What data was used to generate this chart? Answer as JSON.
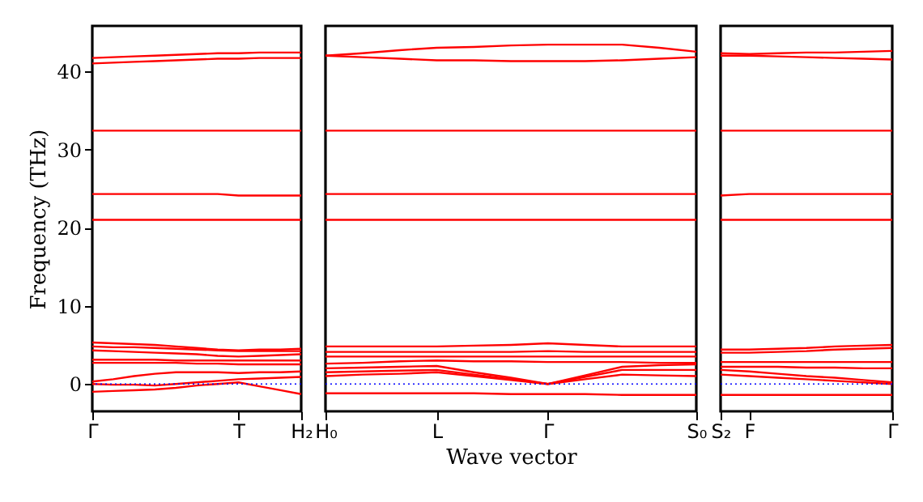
{
  "chart_data": [
    {
      "type": "line",
      "ylabel": "Frequency (THz)",
      "categories": [
        "Γ",
        null,
        null,
        null,
        null,
        null,
        null,
        "T",
        null,
        null,
        "H₂"
      ],
      "ylim": [
        -3.5,
        45.8
      ],
      "yticks": [
        0,
        10,
        20,
        30,
        40
      ],
      "ref_lines": [
        {
          "axis": "y",
          "value": 0,
          "color": "#0000ff",
          "line_style": "dotted"
        }
      ],
      "series": [
        {
          "color": "#ff0000",
          "values": [
            -1.0,
            -0.9,
            -0.8,
            -0.7,
            -0.5,
            -0.2,
            0.0,
            0.2,
            -0.3,
            -0.8,
            -1.3
          ]
        },
        {
          "color": "#ff0000",
          "values": [
            0,
            -0.1,
            -0.1,
            -0.2,
            0,
            0.2,
            0.4,
            0.6,
            0.7,
            0.8,
            0.9
          ]
        },
        {
          "color": "#ff0000",
          "values": [
            0.3,
            0.6,
            1.0,
            1.3,
            1.5,
            1.5,
            1.5,
            1.4,
            1.5,
            1.5,
            1.6
          ]
        },
        {
          "color": "#ff0000",
          "values": [
            2.7,
            2.7,
            2.7,
            2.7,
            2.7,
            2.6,
            2.6,
            2.5,
            2.5,
            2.5,
            2.5
          ]
        },
        {
          "color": "#ff0000",
          "values": [
            3.1,
            3.1,
            3.1,
            3.1,
            3.0,
            3.0,
            3.0,
            3.0,
            3.0,
            3.0,
            3.0
          ]
        },
        {
          "color": "#ff0000",
          "values": [
            4.3,
            4.2,
            4.1,
            4.0,
            3.9,
            3.8,
            3.6,
            3.5,
            3.6,
            3.7,
            3.8
          ]
        },
        {
          "color": "#ff0000",
          "values": [
            4.8,
            4.7,
            4.7,
            4.6,
            4.5,
            4.4,
            4.3,
            4.2,
            4.2,
            4.2,
            4.2
          ]
        },
        {
          "color": "#ff0000",
          "values": [
            5.3,
            5.2,
            5.1,
            5.0,
            4.8,
            4.6,
            4.4,
            4.3,
            4.4,
            4.4,
            4.5
          ]
        },
        {
          "color": "#ff0000",
          "values": [
            21.0,
            21.0,
            21.0,
            21.0,
            21.0,
            21.0,
            21.0,
            21.0,
            21.0,
            21.0,
            21.0
          ]
        },
        {
          "color": "#ff0000",
          "values": [
            24.3,
            24.3,
            24.3,
            24.3,
            24.3,
            24.3,
            24.3,
            24.1,
            24.1,
            24.1,
            24.1
          ]
        },
        {
          "color": "#ff0000",
          "values": [
            32.4,
            32.4,
            32.4,
            32.4,
            32.4,
            32.4,
            32.4,
            32.4,
            32.4,
            32.4,
            32.4
          ]
        },
        {
          "color": "#ff0000",
          "values": [
            41.7,
            41.8,
            41.9,
            42.0,
            42.1,
            42.2,
            42.3,
            42.3,
            42.4,
            42.4,
            42.4
          ]
        },
        {
          "color": "#ff0000",
          "values": [
            41.0,
            41.1,
            41.2,
            41.3,
            41.4,
            41.5,
            41.6,
            41.6,
            41.7,
            41.7,
            41.7
          ]
        }
      ]
    },
    {
      "type": "line",
      "xlabel": "Wave vector",
      "tick_labels": "x",
      "categories": [
        "H₀",
        null,
        null,
        "L",
        null,
        null,
        "Γ",
        null,
        null,
        null,
        "S₀"
      ],
      "ylim": [
        -3.5,
        45.8
      ],
      "yticks": [
        0,
        10,
        20,
        30,
        40
      ],
      "ref_lines": [
        {
          "axis": "y",
          "value": 0,
          "color": "#0000ff",
          "line_style": "dotted"
        }
      ],
      "series": [
        {
          "color": "#ff0000",
          "values": [
            -1.2,
            -1.2,
            -1.2,
            -1.2,
            -1.2,
            -1.3,
            -1.3,
            -1.3,
            -1.4,
            -1.4,
            -1.4
          ]
        },
        {
          "color": "#ff0000",
          "values": [
            1.0,
            1.2,
            1.3,
            1.5,
            1.0,
            0.5,
            0,
            0.6,
            1.2,
            1.1,
            1.0
          ]
        },
        {
          "color": "#ff0000",
          "values": [
            1.5,
            1.6,
            1.7,
            1.8,
            1.2,
            0.6,
            0,
            0.9,
            1.8,
            1.8,
            1.8
          ]
        },
        {
          "color": "#ff0000",
          "values": [
            2.0,
            2.1,
            2.2,
            2.3,
            1.5,
            0.8,
            0,
            1.1,
            2.2,
            2.4,
            2.5
          ]
        },
        {
          "color": "#ff0000",
          "values": [
            2.6,
            2.7,
            2.9,
            3.0,
            2.9,
            2.9,
            2.8,
            2.8,
            2.8,
            2.7,
            2.7
          ]
        },
        {
          "color": "#ff0000",
          "values": [
            3.5,
            3.5,
            3.5,
            3.5,
            3.5,
            3.5,
            3.5,
            3.5,
            3.5,
            3.5,
            3.5
          ]
        },
        {
          "color": "#ff0000",
          "values": [
            4.8,
            4.8,
            4.8,
            4.8,
            4.9,
            5.0,
            5.2,
            5.0,
            4.8,
            4.8,
            4.8
          ]
        },
        {
          "color": "#ff0000",
          "values": [
            4.1,
            4.1,
            4.1,
            4.1,
            4.1,
            4.1,
            4.2,
            4.1,
            4.1,
            4.1,
            4.1
          ]
        },
        {
          "color": "#ff0000",
          "values": [
            21.0,
            21.0,
            21.0,
            21.0,
            21.0,
            21.0,
            21.0,
            21.0,
            21.0,
            21.0,
            21.0
          ]
        },
        {
          "color": "#ff0000",
          "values": [
            24.3,
            24.3,
            24.3,
            24.3,
            24.3,
            24.3,
            24.3,
            24.3,
            24.3,
            24.3,
            24.3
          ]
        },
        {
          "color": "#ff0000",
          "values": [
            32.4,
            32.4,
            32.4,
            32.4,
            32.4,
            32.4,
            32.4,
            32.4,
            32.4,
            32.4,
            32.4
          ]
        },
        {
          "color": "#ff0000",
          "values": [
            42.0,
            42.3,
            42.7,
            43.0,
            43.1,
            43.3,
            43.4,
            43.4,
            43.4,
            43.0,
            42.5
          ]
        },
        {
          "color": "#ff0000",
          "values": [
            42.0,
            41.8,
            41.6,
            41.4,
            41.4,
            41.3,
            41.3,
            41.3,
            41.4,
            41.6,
            41.8
          ]
        }
      ]
    },
    {
      "type": "line",
      "tick_labels": "x",
      "categories": [
        "S₂",
        "F",
        null,
        null,
        null,
        null,
        "Γ"
      ],
      "ylim": [
        -3.5,
        45.8
      ],
      "yticks": [
        0,
        10,
        20,
        30,
        40
      ],
      "ref_lines": [
        {
          "axis": "y",
          "value": 0,
          "color": "#0000ff",
          "line_style": "dotted"
        }
      ],
      "series": [
        {
          "color": "#ff0000",
          "values": [
            -1.4,
            -1.4,
            -1.4,
            -1.4,
            -1.4,
            -1.4,
            -1.4
          ]
        },
        {
          "color": "#ff0000",
          "values": [
            1.2,
            1.0,
            0.8,
            0.6,
            0.4,
            0.2,
            0
          ]
        },
        {
          "color": "#ff0000",
          "values": [
            1.8,
            1.6,
            1.3,
            1.0,
            0.8,
            0.5,
            0.2
          ]
        },
        {
          "color": "#ff0000",
          "values": [
            2.2,
            2.2,
            2.2,
            2.1,
            2.1,
            2.0,
            2.0
          ]
        },
        {
          "color": "#ff0000",
          "values": [
            2.8,
            2.8,
            2.8,
            2.8,
            2.8,
            2.8,
            2.8
          ]
        },
        {
          "color": "#ff0000",
          "values": [
            4.0,
            4.0,
            4.1,
            4.2,
            4.4,
            4.5,
            4.6
          ]
        },
        {
          "color": "#ff0000",
          "values": [
            4.4,
            4.4,
            4.5,
            4.6,
            4.8,
            4.9,
            5.0
          ]
        },
        {
          "color": "#ff0000",
          "values": [
            21.0,
            21.0,
            21.0,
            21.0,
            21.0,
            21.0,
            21.0
          ]
        },
        {
          "color": "#ff0000",
          "values": [
            24.1,
            24.3,
            24.3,
            24.3,
            24.3,
            24.3,
            24.3
          ]
        },
        {
          "color": "#ff0000",
          "values": [
            32.4,
            32.4,
            32.4,
            32.4,
            32.4,
            32.4,
            32.4
          ]
        },
        {
          "color": "#ff0000",
          "values": [
            42.3,
            42.2,
            42.3,
            42.4,
            42.4,
            42.5,
            42.6
          ]
        },
        {
          "color": "#ff0000",
          "values": [
            42.0,
            42.0,
            41.9,
            41.8,
            41.7,
            41.6,
            41.5
          ]
        }
      ]
    }
  ]
}
